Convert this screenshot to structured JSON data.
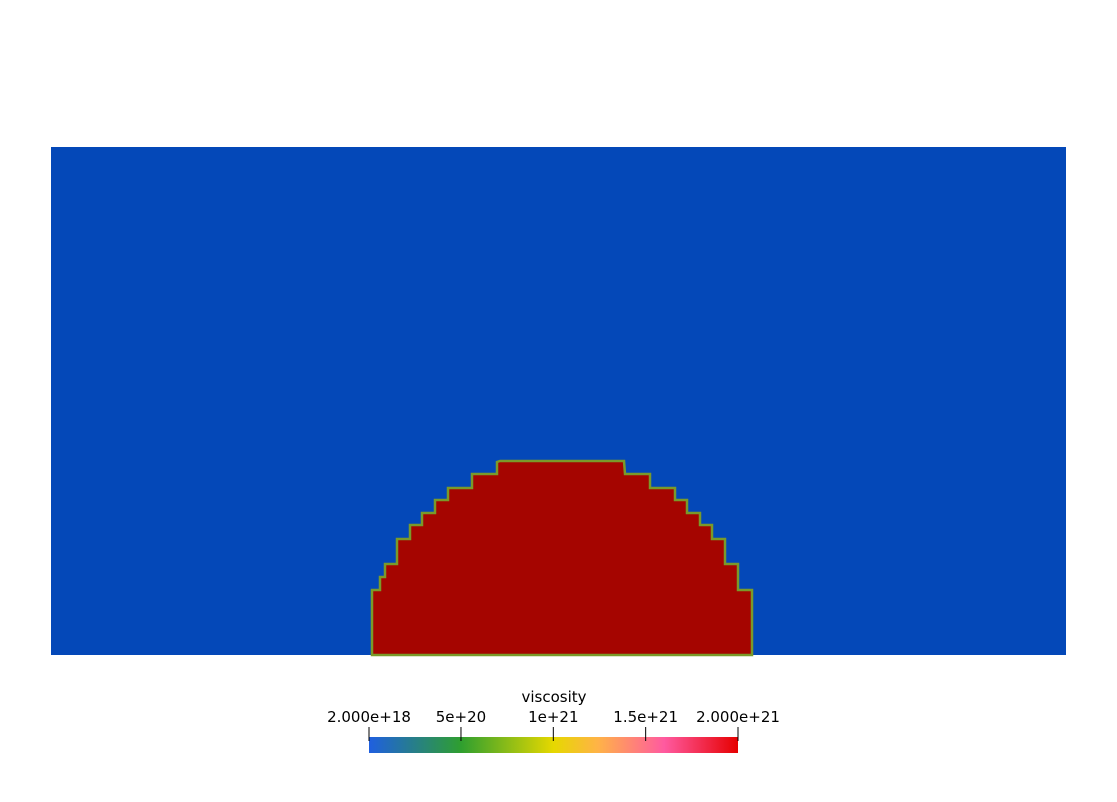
{
  "colorbar": {
    "title": "viscosity",
    "ticks": [
      {
        "value": 2e+18,
        "label": "2.000e+18"
      },
      {
        "value": 5e+20,
        "label": "5e+20"
      },
      {
        "value": 1e+21,
        "label": "1e+21"
      },
      {
        "value": 1.5e+21,
        "label": "1.5e+21"
      },
      {
        "value": 2e+21,
        "label": "2.000e+21"
      }
    ],
    "range": [
      2e+18,
      2e+21
    ],
    "colormap": [
      "#1f5fe0",
      "#2f9f2f",
      "#e6d800",
      "#ffb347",
      "#ff5aa0",
      "#e60000"
    ]
  },
  "field": {
    "background_color": "#0448b8",
    "inclusion_color": "#a50500",
    "boundary_color": "#7a9a2a"
  }
}
